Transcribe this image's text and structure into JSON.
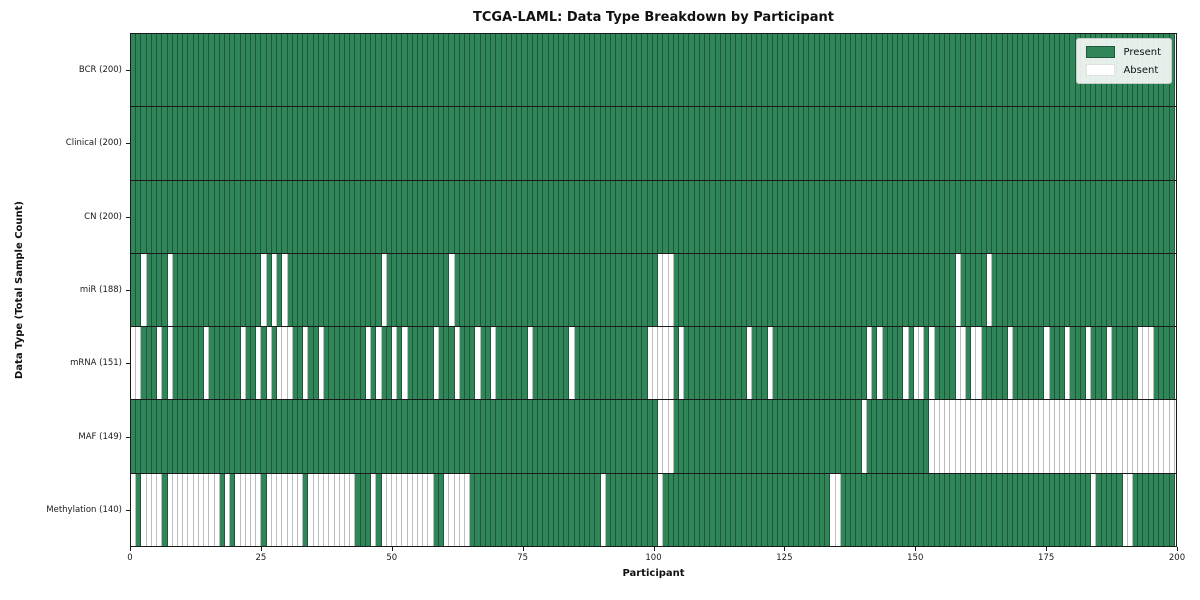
{
  "title": "TCGA-LAML: Data Type Breakdown by Participant",
  "xlabel": "Participant",
  "ylabel": "Data Type (Total Sample Count)",
  "legend": {
    "present_label": "Present",
    "absent_label": "Absent"
  },
  "colors": {
    "present": "#318659",
    "absent": "#ffffff",
    "row_separator": "#1a1a1a",
    "spine": "#1a1a1a"
  },
  "x_ticks": [
    0,
    25,
    50,
    75,
    100,
    125,
    150,
    175,
    200
  ],
  "n_participants": 200,
  "chart_data": {
    "type": "heatmap",
    "x_range": [
      0,
      200
    ],
    "legend_position": "upper right",
    "title": "TCGA-LAML: Data Type Breakdown by Participant",
    "xlabel": "Participant",
    "ylabel": "Data Type (Total Sample Count)",
    "value_encoding": {
      "present": 1,
      "absent": 0
    },
    "rows": [
      {
        "label": "BCR (200)",
        "name": "BCR",
        "present_count": 200,
        "absent": []
      },
      {
        "label": "Clinical (200)",
        "name": "Clinical",
        "present_count": 200,
        "absent": []
      },
      {
        "label": "CN (200)",
        "name": "CN",
        "present_count": 200,
        "absent": []
      },
      {
        "label": "miR (188)",
        "name": "miR",
        "present_count": 188,
        "absent": [
          2,
          7,
          25,
          27,
          29,
          48,
          61,
          101,
          102,
          103,
          158,
          164
        ]
      },
      {
        "label": "mRNA (151)",
        "name": "mRNA",
        "present_count": 151,
        "absent": [
          0,
          1,
          5,
          7,
          14,
          21,
          24,
          26,
          28,
          29,
          30,
          33,
          36,
          45,
          47,
          50,
          52,
          58,
          62,
          66,
          69,
          76,
          84,
          99,
          100,
          101,
          102,
          103,
          105,
          118,
          122,
          141,
          143,
          148,
          150,
          151,
          153,
          158,
          159,
          161,
          162,
          168,
          175,
          179,
          183,
          187,
          193,
          194,
          195
        ]
      },
      {
        "label": "MAF (149)",
        "name": "MAF",
        "present_count": 149,
        "absent": [
          101,
          102,
          103,
          140,
          153,
          154,
          155,
          156,
          157,
          158,
          159,
          160,
          161,
          162,
          163,
          164,
          165,
          166,
          167,
          168,
          169,
          170,
          171,
          172,
          173,
          174,
          175,
          176,
          177,
          178,
          179,
          180,
          181,
          182,
          183,
          184,
          185,
          186,
          187,
          188,
          189,
          190,
          191,
          192,
          193,
          194,
          195,
          196,
          197,
          198,
          199
        ]
      },
      {
        "label": "Methylation (140)",
        "name": "Methylation",
        "present_count": 140,
        "absent": [
          0,
          2,
          3,
          4,
          5,
          7,
          8,
          9,
          10,
          11,
          12,
          13,
          14,
          15,
          16,
          18,
          20,
          21,
          22,
          23,
          24,
          26,
          27,
          28,
          29,
          30,
          31,
          32,
          34,
          35,
          36,
          37,
          38,
          39,
          40,
          41,
          42,
          46,
          48,
          49,
          50,
          51,
          52,
          53,
          54,
          55,
          56,
          57,
          60,
          61,
          62,
          63,
          64,
          90,
          101,
          134,
          135,
          184,
          190,
          191
        ]
      }
    ]
  }
}
